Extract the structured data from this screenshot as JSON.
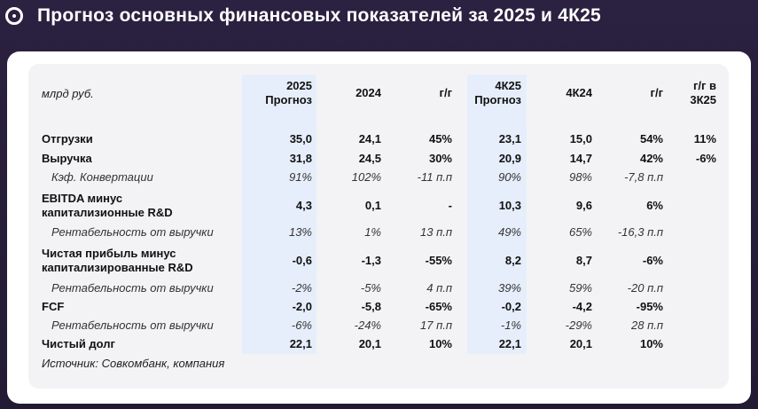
{
  "header": {
    "title": "Прогноз основных финансовых показателей за 2025 и 4К25"
  },
  "table": {
    "unit": "млрд руб.",
    "columns": [
      "2025\nПрогноз",
      "2024",
      "г/г",
      "4К25\nПрогноз",
      "4К24",
      "г/г",
      "г/г в\n3К25"
    ],
    "rows": [
      {
        "label": "Отгрузки",
        "cells": [
          "35,0",
          "24,1",
          "45%",
          "23,1",
          "15,0",
          "54%",
          "11%"
        ]
      },
      {
        "label": "Выручка",
        "cells": [
          "31,8",
          "24,5",
          "30%",
          "20,9",
          "14,7",
          "42%",
          "-6%"
        ]
      },
      {
        "label": "Кэф. Конвертации",
        "cells": [
          "91%",
          "102%",
          "-11 п.п",
          "90%",
          "98%",
          "-7,8 п.п"
        ]
      },
      {
        "label": "EBITDA минус\nкапитализионные R&D",
        "cells": [
          "4,3",
          "0,1",
          "-",
          "10,3",
          "9,6",
          "6%"
        ]
      },
      {
        "label": "Рентабельность от выручки",
        "cells": [
          "13%",
          "1%",
          "13 п.п",
          "49%",
          "65%",
          "-16,3 п.п"
        ]
      },
      {
        "label": "Чистая прибыль минус\nкапитализированные R&D",
        "cells": [
          "-0,6",
          "-1,3",
          "-55%",
          "8,2",
          "8,7",
          "-6%"
        ]
      },
      {
        "label": "Рентабельность от выручки",
        "cells": [
          "-2%",
          "-5%",
          "4 п.п",
          "39%",
          "59%",
          "-20 п.п"
        ]
      },
      {
        "label": "FCF",
        "cells": [
          "-2,0",
          "-5,8",
          "-65%",
          "-0,2",
          "-4,2",
          "-95%"
        ]
      },
      {
        "label": "Рентабельность от выручки",
        "cells": [
          "-6%",
          "-24%",
          "17 п.п",
          "-1%",
          "-29%",
          "28 п.п"
        ]
      },
      {
        "label": "Чистый долг",
        "cells": [
          "22,1",
          "20,1",
          "10%",
          "22,1",
          "20,1",
          "10%"
        ]
      }
    ],
    "source": "Источник: Совкомбанк, компания"
  }
}
